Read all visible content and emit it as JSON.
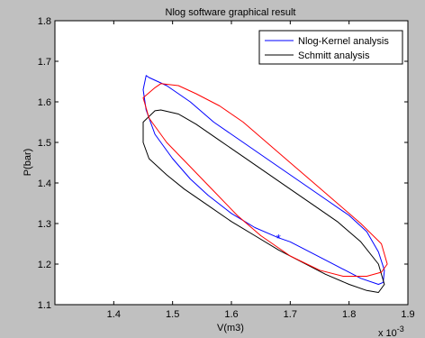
{
  "chart_data": {
    "type": "line",
    "title": "Nlog software graphical result",
    "xlabel": "V(m3)",
    "ylabel": "P(bar)",
    "x_multiplier": "x 10",
    "x_multiplier_exp": "-3",
    "xlim": [
      1.3,
      1.9
    ],
    "ylim": [
      1.1,
      1.8
    ],
    "xticks": [
      1.4,
      1.5,
      1.6,
      1.7,
      1.8,
      1.9
    ],
    "xtick_labels": [
      "1.4",
      "1.5",
      "1.6",
      "1.7",
      "1.8",
      "1.9"
    ],
    "yticks": [
      1.1,
      1.2,
      1.3,
      1.4,
      1.5,
      1.6,
      1.7,
      1.8
    ],
    "ytick_labels": [
      "1.1",
      "1.2",
      "1.3",
      "1.4",
      "1.5",
      "1.6",
      "1.7",
      "1.8"
    ],
    "grid": false,
    "legend_position": "top-right",
    "series": [
      {
        "name": "Nlog-Kernel analysis",
        "color": "#0000ff",
        "x": [
          1.68,
          1.64,
          1.6,
          1.56,
          1.53,
          1.5,
          1.47,
          1.455,
          1.45,
          1.455,
          1.46,
          1.49,
          1.53,
          1.57,
          1.62,
          1.67,
          1.72,
          1.76,
          1.8,
          1.83,
          1.85,
          1.86,
          1.858,
          1.85,
          1.82,
          1.78,
          1.74,
          1.7,
          1.68
        ],
        "y": [
          1.265,
          1.29,
          1.325,
          1.37,
          1.41,
          1.46,
          1.52,
          1.58,
          1.63,
          1.665,
          1.66,
          1.64,
          1.6,
          1.55,
          1.5,
          1.45,
          1.4,
          1.36,
          1.32,
          1.28,
          1.23,
          1.185,
          1.155,
          1.15,
          1.165,
          1.195,
          1.225,
          1.255,
          1.265
        ]
      },
      {
        "name": "Schmitt analysis",
        "color": "#000000",
        "x": [
          1.47,
          1.45,
          1.45,
          1.46,
          1.49,
          1.52,
          1.56,
          1.6,
          1.64,
          1.68,
          1.72,
          1.76,
          1.8,
          1.83,
          1.85,
          1.86,
          1.85,
          1.82,
          1.78,
          1.74,
          1.7,
          1.66,
          1.62,
          1.58,
          1.54,
          1.51,
          1.48,
          1.47
        ],
        "y": [
          1.578,
          1.55,
          1.5,
          1.46,
          1.42,
          1.385,
          1.345,
          1.305,
          1.27,
          1.235,
          1.205,
          1.175,
          1.15,
          1.135,
          1.13,
          1.15,
          1.2,
          1.255,
          1.305,
          1.345,
          1.385,
          1.425,
          1.465,
          1.505,
          1.545,
          1.57,
          1.58,
          1.578
        ]
      },
      {
        "name": "",
        "color": "#ff0000",
        "x": [
          1.47,
          1.45,
          1.46,
          1.49,
          1.53,
          1.57,
          1.61,
          1.65,
          1.7,
          1.75,
          1.79,
          1.83,
          1.855,
          1.865,
          1.855,
          1.82,
          1.78,
          1.74,
          1.7,
          1.66,
          1.62,
          1.58,
          1.54,
          1.51,
          1.48,
          1.47
        ],
        "y": [
          1.635,
          1.61,
          1.56,
          1.5,
          1.44,
          1.38,
          1.32,
          1.27,
          1.22,
          1.185,
          1.17,
          1.17,
          1.18,
          1.2,
          1.25,
          1.3,
          1.35,
          1.4,
          1.45,
          1.5,
          1.55,
          1.59,
          1.62,
          1.64,
          1.645,
          1.635
        ]
      }
    ],
    "markers": [
      {
        "x": 1.68,
        "y": 1.265,
        "symbol": "*",
        "color": "#0000ff"
      }
    ]
  }
}
